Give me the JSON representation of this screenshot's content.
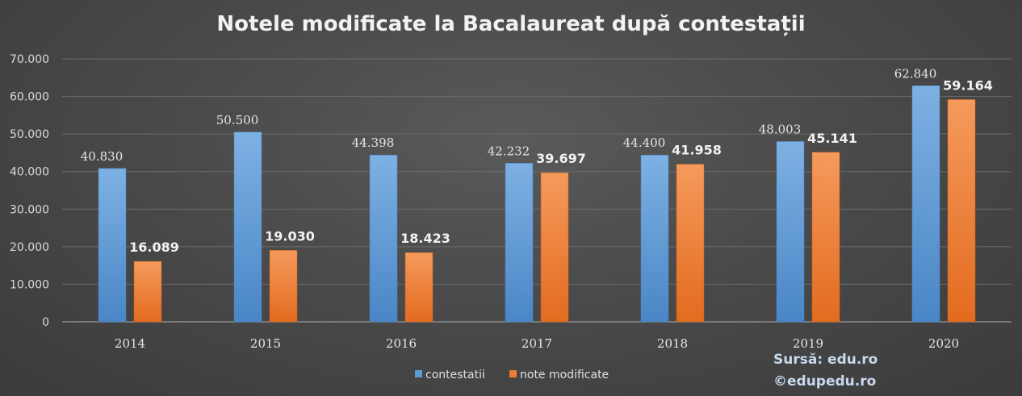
{
  "chart_data": {
    "type": "bar",
    "title": "Notele modificate la Bacalaureat după contestații",
    "categories": [
      "2014",
      "2015",
      "2016",
      "2017",
      "2018",
      "2019",
      "2020"
    ],
    "series": [
      {
        "name": "contestatii",
        "values": [
          40830,
          50500,
          44398,
          42232,
          44400,
          48003,
          62840
        ],
        "labels": [
          "40.830",
          "50.500",
          "44.398",
          "42.232",
          "44.400",
          "48.003",
          "62.840"
        ],
        "color": "#5b9bd5"
      },
      {
        "name": "note modificate",
        "values": [
          16089,
          19030,
          18423,
          39697,
          41958,
          45141,
          59164
        ],
        "labels": [
          "16.089",
          "19.030",
          "18.423",
          "39.697",
          "41.958",
          "45.141",
          "59.164"
        ],
        "color": "#ed7d31"
      }
    ],
    "ylim": [
      0,
      70000
    ],
    "yticks": [
      {
        "value": 0,
        "label": "0"
      },
      {
        "value": 10000,
        "label": "10.000"
      },
      {
        "value": 20000,
        "label": "20.000"
      },
      {
        "value": 30000,
        "label": "30.000"
      },
      {
        "value": 40000,
        "label": "40.000"
      },
      {
        "value": 50000,
        "label": "50.000"
      },
      {
        "value": 60000,
        "label": "60.000"
      },
      {
        "value": 70000,
        "label": "70.000"
      }
    ],
    "grid": true,
    "legend_position": "bottom",
    "xlabel": "",
    "ylabel": ""
  },
  "source": {
    "line1": "Sursă: edu.ro",
    "line2": "©edupedu.ro"
  }
}
